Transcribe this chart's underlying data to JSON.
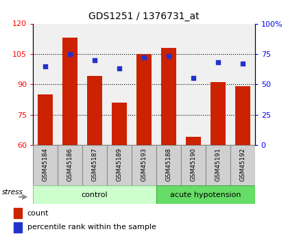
{
  "title": "GDS1251 / 1376731_at",
  "samples": [
    "GSM45184",
    "GSM45186",
    "GSM45187",
    "GSM45189",
    "GSM45193",
    "GSM45188",
    "GSM45190",
    "GSM45191",
    "GSM45192"
  ],
  "red_values": [
    85,
    113,
    94,
    81,
    105,
    108,
    64,
    91,
    89
  ],
  "blue_values": [
    65,
    75,
    70,
    63,
    72,
    73,
    55,
    68,
    67
  ],
  "groups": [
    {
      "label": "control",
      "start": 0,
      "end": 5,
      "color": "#ccffcc",
      "edge": "#88cc88"
    },
    {
      "label": "acute hypotension",
      "start": 5,
      "end": 9,
      "color": "#66dd66",
      "edge": "#44aa44"
    }
  ],
  "ylim_left": [
    60,
    120
  ],
  "ylim_right": [
    0,
    100
  ],
  "yticks_left": [
    60,
    75,
    90,
    105,
    120
  ],
  "yticks_right": [
    0,
    25,
    50,
    75,
    100
  ],
  "bar_color": "#cc2200",
  "dot_color": "#2233cc",
  "background_color": "#ffffff",
  "grid_lines": [
    75,
    90,
    105
  ],
  "stress_label": "stress",
  "legend_count": "count",
  "legend_percentile": "percentile rank within the sample"
}
